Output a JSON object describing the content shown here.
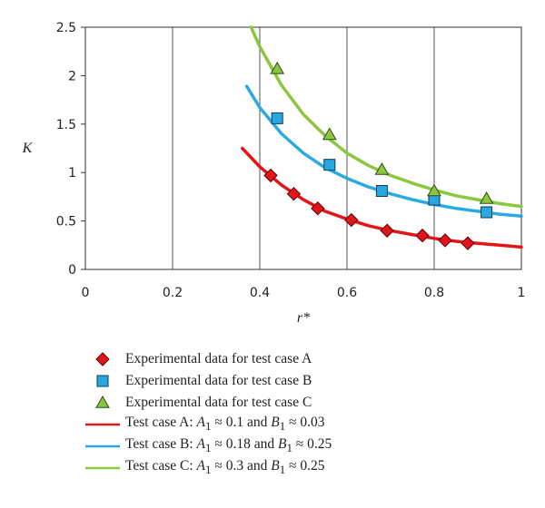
{
  "chart_data": {
    "type": "scatter",
    "xlabel": "r*",
    "ylabel": "K",
    "xlim": [
      0,
      1
    ],
    "ylim": [
      0,
      2.5
    ],
    "x_ticks": [
      "0",
      "0.2",
      "0.4",
      "0.6",
      "0.8",
      "1"
    ],
    "y_ticks": [
      "0",
      "0.5",
      "1",
      "1.5",
      "2",
      "2.5"
    ],
    "grid": "vertical",
    "series": [
      {
        "name": "Experimental data for test case A",
        "kind": "marker",
        "marker": "diamond",
        "color": "#e0161b",
        "points": [
          [
            0.425,
            0.97
          ],
          [
            0.478,
            0.78
          ],
          [
            0.533,
            0.63
          ],
          [
            0.61,
            0.51
          ],
          [
            0.692,
            0.4
          ],
          [
            0.773,
            0.35
          ],
          [
            0.825,
            0.3
          ],
          [
            0.877,
            0.27
          ]
        ]
      },
      {
        "name": "Experimental data for test case B",
        "kind": "marker",
        "marker": "square",
        "color": "#2aa7e0",
        "points": [
          [
            0.44,
            1.56
          ],
          [
            0.56,
            1.08
          ],
          [
            0.68,
            0.81
          ],
          [
            0.8,
            0.72
          ],
          [
            0.92,
            0.59
          ]
        ]
      },
      {
        "name": "Experimental data for test case C",
        "kind": "marker",
        "marker": "triangle",
        "color": "#8cc63f",
        "points": [
          [
            0.44,
            2.07
          ],
          [
            0.56,
            1.39
          ],
          [
            0.68,
            1.03
          ],
          [
            0.8,
            0.81
          ],
          [
            0.92,
            0.73
          ]
        ]
      },
      {
        "name": "Test case A: A1 ≈ 0.1 and B1 ≈ 0.03",
        "kind": "line",
        "color": "#e3151a",
        "points": [
          [
            0.36,
            1.25
          ],
          [
            0.4,
            1.06
          ],
          [
            0.45,
            0.87
          ],
          [
            0.5,
            0.72
          ],
          [
            0.55,
            0.6
          ],
          [
            0.6,
            0.52
          ],
          [
            0.65,
            0.45
          ],
          [
            0.7,
            0.4
          ],
          [
            0.75,
            0.36
          ],
          [
            0.8,
            0.32
          ],
          [
            0.85,
            0.29
          ],
          [
            0.9,
            0.27
          ],
          [
            0.95,
            0.25
          ],
          [
            1.0,
            0.23
          ]
        ]
      },
      {
        "name": "Test case B: A1 ≈ 0.18 and B1 ≈ 0.25",
        "kind": "line",
        "color": "#29abe2",
        "points": [
          [
            0.37,
            1.89
          ],
          [
            0.4,
            1.67
          ],
          [
            0.45,
            1.4
          ],
          [
            0.5,
            1.2
          ],
          [
            0.55,
            1.05
          ],
          [
            0.6,
            0.94
          ],
          [
            0.65,
            0.85
          ],
          [
            0.7,
            0.78
          ],
          [
            0.75,
            0.72
          ],
          [
            0.8,
            0.67
          ],
          [
            0.85,
            0.63
          ],
          [
            0.9,
            0.6
          ],
          [
            0.95,
            0.57
          ],
          [
            1.0,
            0.55
          ]
        ]
      },
      {
        "name": "Test case C: A1 ≈ 0.3 and B1 ≈ 0.25",
        "kind": "line",
        "color": "#8dc63f",
        "points": [
          [
            0.38,
            2.5
          ],
          [
            0.4,
            2.3
          ],
          [
            0.45,
            1.9
          ],
          [
            0.5,
            1.6
          ],
          [
            0.55,
            1.38
          ],
          [
            0.6,
            1.2
          ],
          [
            0.65,
            1.07
          ],
          [
            0.7,
            0.97
          ],
          [
            0.75,
            0.89
          ],
          [
            0.8,
            0.82
          ],
          [
            0.85,
            0.76
          ],
          [
            0.9,
            0.72
          ],
          [
            0.95,
            0.68
          ],
          [
            1.0,
            0.65
          ]
        ]
      }
    ]
  },
  "legend": [
    {
      "marker": "diamond",
      "color": "#e0161b",
      "text": "Experimental data for test case A"
    },
    {
      "marker": "square",
      "color": "#2aa7e0",
      "text": "Experimental data for test case B"
    },
    {
      "marker": "triangle",
      "color": "#8cc63f",
      "text": "Experimental data for test case C"
    },
    {
      "marker": "line",
      "color": "#e3151a",
      "prefix": "Test case A: ",
      "a_label": "A",
      "a_sub": "1",
      "a_val": " ≈ 0.1 and ",
      "b_label": "B",
      "b_sub": "1",
      "b_val": " ≈ 0.03"
    },
    {
      "marker": "line",
      "color": "#29abe2",
      "prefix": "Test case B: ",
      "a_label": "A",
      "a_sub": "1",
      "a_val": " ≈ 0.18 and ",
      "b_label": "B",
      "b_sub": "1",
      "b_val": " ≈ 0.25"
    },
    {
      "marker": "line",
      "color": "#8dc63f",
      "prefix": "Test case C: ",
      "a_label": "A",
      "a_sub": "1",
      "a_val": " ≈ 0.3 and ",
      "b_label": "B",
      "b_sub": "1",
      "b_val": " ≈ 0.25"
    }
  ]
}
